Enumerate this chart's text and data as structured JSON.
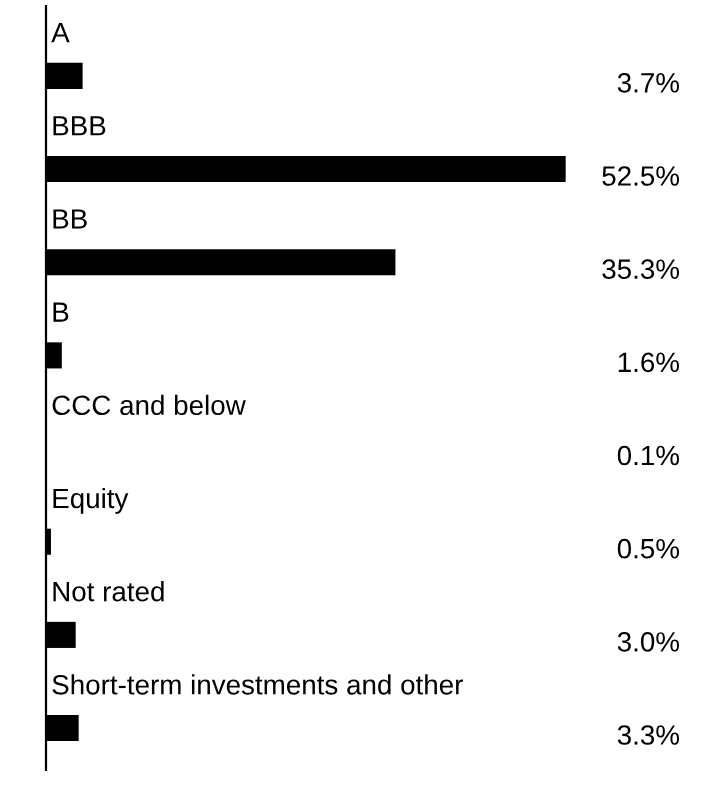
{
  "chart_data": {
    "type": "bar",
    "orientation": "horizontal",
    "categories": [
      "A",
      "BBB",
      "BB",
      "B",
      "CCC and below",
      "Equity",
      "Not rated",
      "Short-term investments and other"
    ],
    "values": [
      3.7,
      52.5,
      35.3,
      1.6,
      0.1,
      0.5,
      3.0,
      3.3
    ],
    "value_labels": [
      "3.7%",
      "52.5%",
      "35.3%",
      "1.6%",
      "0.1%",
      "0.5%",
      "3.0%",
      "3.3%"
    ],
    "color": "#000000"
  }
}
